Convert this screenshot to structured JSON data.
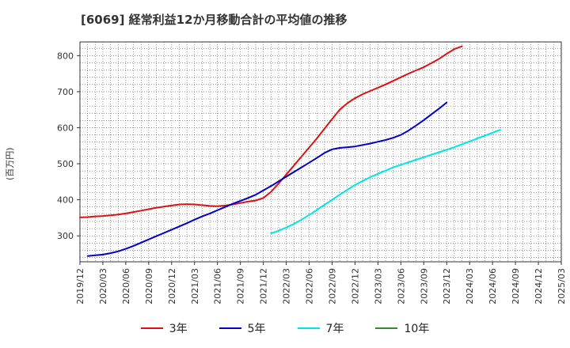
{
  "chart_data": {
    "type": "line",
    "title": "[6069]  経常利益12か月移動合計の平均値の推移",
    "ylabel": "(百万円)",
    "xlabel": "",
    "ylim": [
      228,
      838
    ],
    "yticks": [
      300,
      400,
      500,
      600,
      700,
      800
    ],
    "grid": true,
    "legend_position": "bottom",
    "x_tick_labels": [
      "2019/12",
      "2020/03",
      "2020/06",
      "2020/09",
      "2020/12",
      "2021/03",
      "2021/06",
      "2021/09",
      "2021/12",
      "2022/03",
      "2022/06",
      "2022/09",
      "2022/12",
      "2023/03",
      "2023/06",
      "2023/09",
      "2023/12",
      "2024/03",
      "2024/06",
      "2024/09",
      "2024/12",
      "2025/03"
    ],
    "series": [
      {
        "name": "3年",
        "color": "#dd1111",
        "start_index": 0,
        "values": [
          351,
          352,
          354,
          355,
          357,
          359,
          362,
          366,
          370,
          374,
          378,
          381,
          384,
          387,
          388,
          387,
          385,
          383,
          382,
          384,
          387,
          391,
          395,
          398,
          405,
          422,
          445,
          470,
          495,
          520,
          545,
          570,
          597,
          624,
          650,
          668,
          682,
          693,
          702,
          711,
          720,
          730,
          740,
          750,
          759,
          768,
          779,
          791,
          805,
          818,
          826
        ]
      },
      {
        "name": "5年",
        "color": "#0000cc",
        "start_index": 1,
        "values": [
          244,
          246,
          248,
          252,
          257,
          264,
          272,
          281,
          290,
          299,
          308,
          317,
          326,
          335,
          345,
          354,
          362,
          371,
          380,
          389,
          397,
          405,
          414,
          426,
          438,
          451,
          464,
          477,
          490,
          503,
          516,
          530,
          540,
          544,
          546,
          548,
          552,
          556,
          561,
          566,
          572,
          580,
          592,
          606,
          621,
          637,
          653,
          670
        ]
      },
      {
        "name": "7年",
        "color": "#00e5e5",
        "start_index": 25,
        "values": [
          307,
          314,
          323,
          333,
          345,
          358,
          372,
          386,
          400,
          414,
          428,
          441,
          452,
          463,
          472,
          481,
          490,
          497,
          504,
          511,
          518,
          525,
          532,
          539,
          546,
          554,
          562,
          570,
          578,
          586,
          594
        ]
      },
      {
        "name": "10年",
        "color": "#2e8b2e",
        "start_index": 0,
        "values": []
      }
    ]
  }
}
